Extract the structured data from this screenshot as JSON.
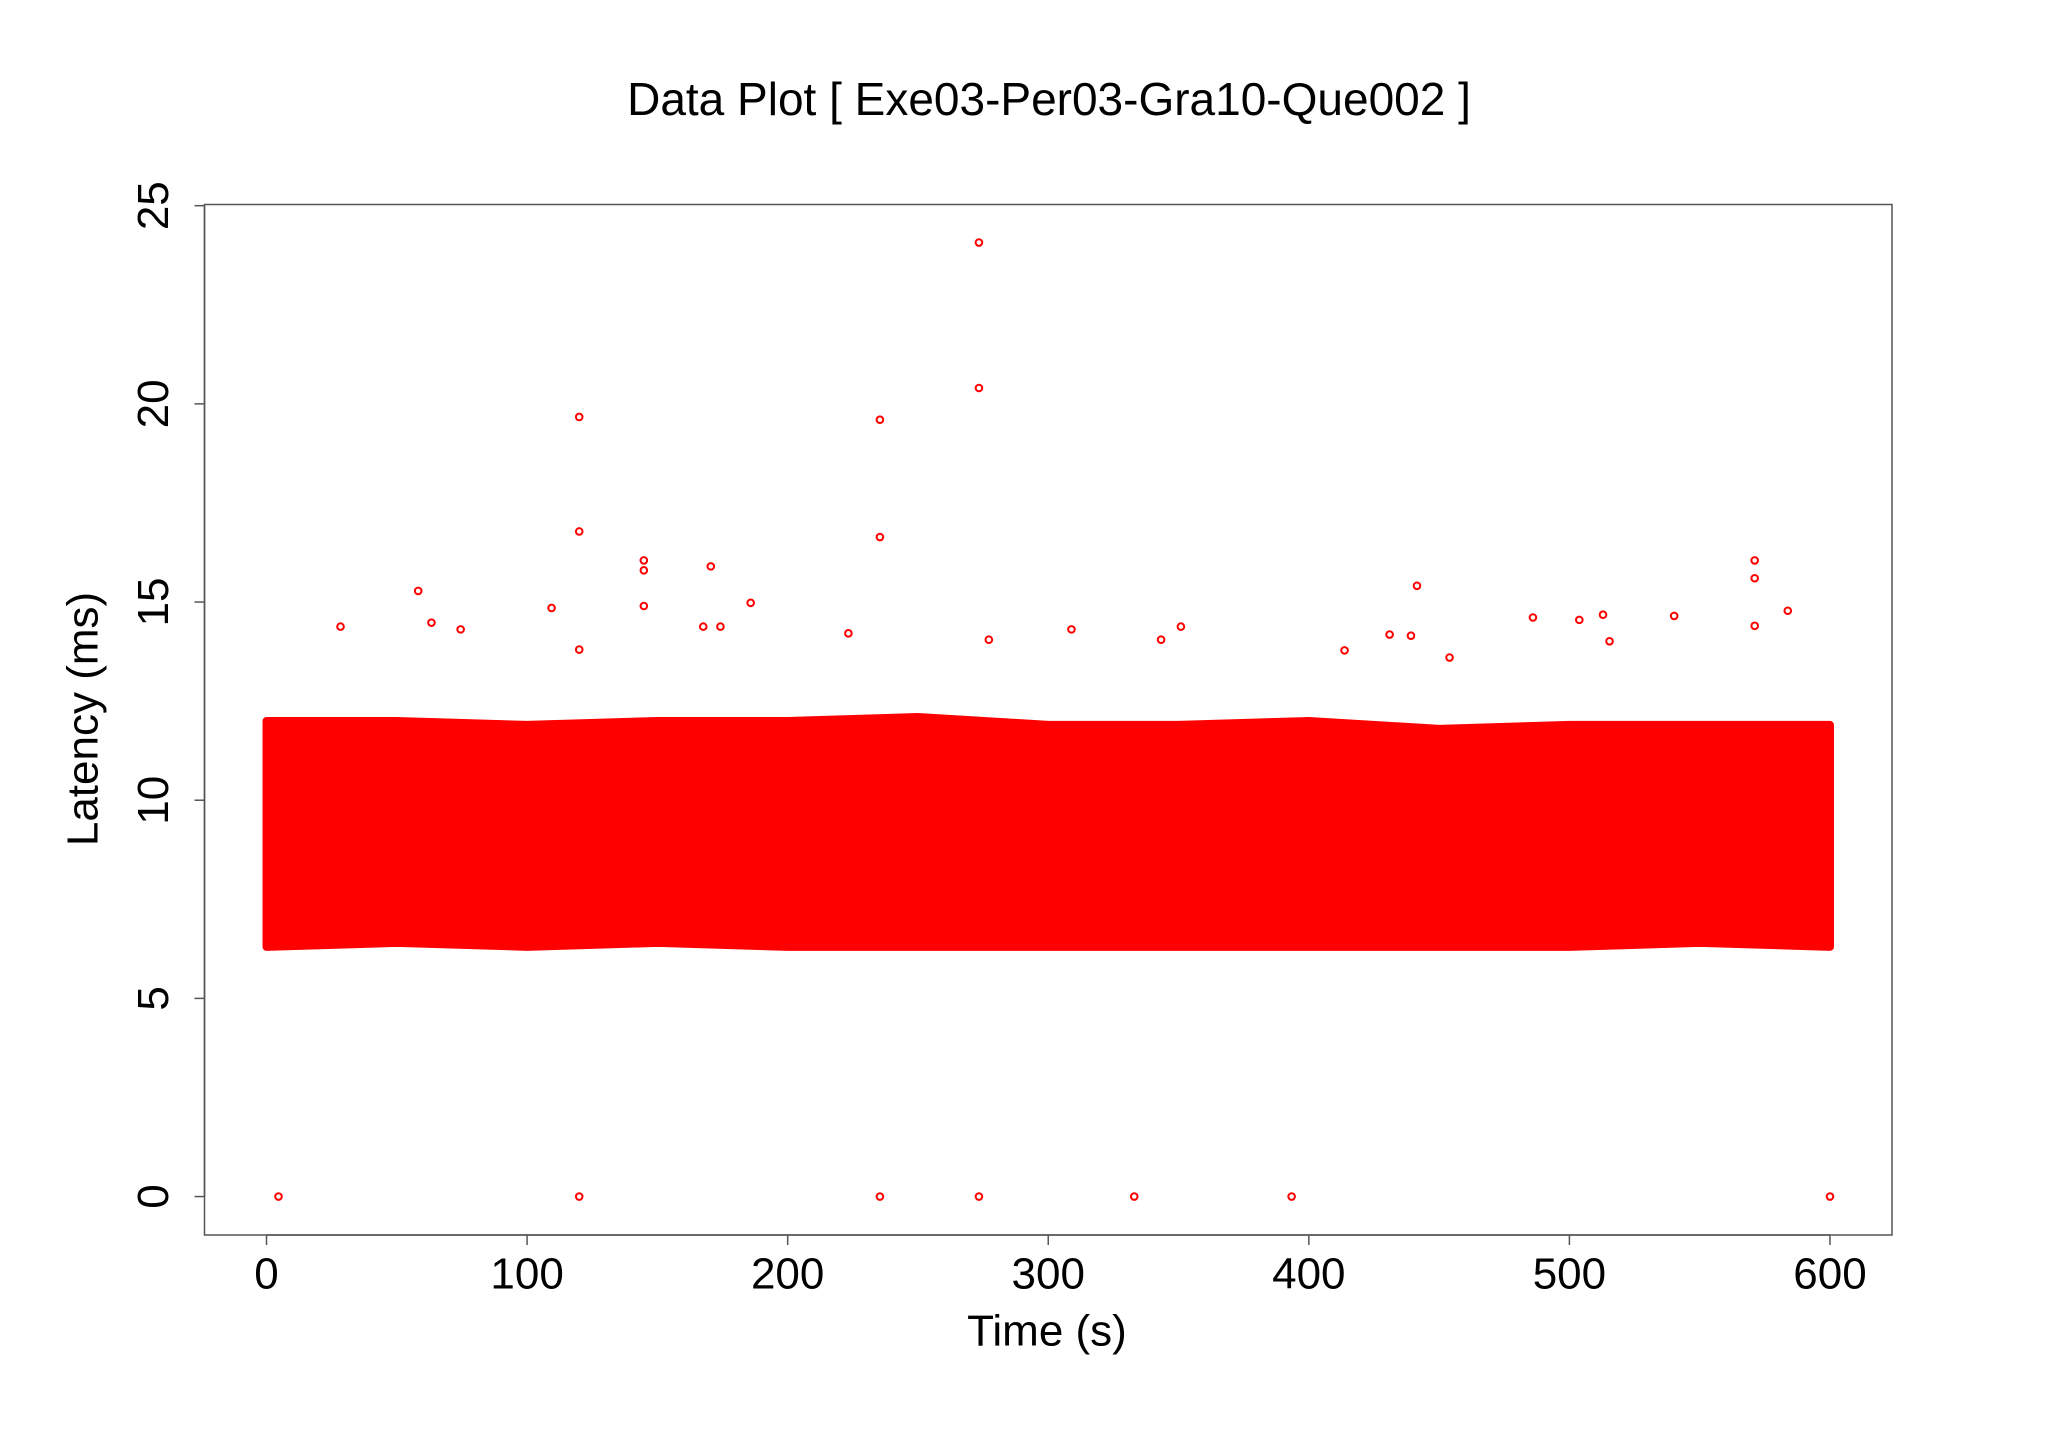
{
  "chart_data": {
    "type": "scatter",
    "title": "Data Plot [ Exe03-Per03-Gra10-Que002 ]",
    "x_label": "Time (s)",
    "y_label": "Latency (ms)",
    "xlim": [
      -23.8,
      623.8
    ],
    "ylim": [
      -0.97,
      25.03
    ],
    "xticks": [
      0,
      100,
      200,
      300,
      400,
      500,
      600
    ],
    "yticks": [
      0,
      5,
      10,
      15,
      20,
      25
    ],
    "band": {
      "color": "#ff0000",
      "x": [
        0,
        50,
        100,
        150,
        200,
        250,
        300,
        350,
        400,
        450,
        500,
        550,
        600
      ],
      "low": [
        6.3,
        6.4,
        6.3,
        6.4,
        6.3,
        6.3,
        6.3,
        6.3,
        6.3,
        6.3,
        6.3,
        6.4,
        6.3
      ],
      "high": [
        12.0,
        12.0,
        11.9,
        12.0,
        12.0,
        12.1,
        11.9,
        11.9,
        12.0,
        11.8,
        11.9,
        11.9,
        11.9
      ]
    },
    "series": [
      {
        "color": "#ff0000",
        "x": [
          4.6,
          120,
          235.4,
          273.4,
          333,
          393.4,
          600,
          273.4,
          273.4,
          120,
          235.4,
          120,
          235.4,
          144.8,
          144.8,
          170.5,
          58.2,
          441.5,
          571.1,
          571.1,
          185.8,
          109.4,
          583.8,
          28.4,
          63.3,
          74.5,
          167.6,
          174.2,
          223.3,
          308.9,
          350.9,
          486,
          512.9,
          540.2,
          503.8,
          431,
          439.2,
          343.3,
          277.2,
          515.4,
          413.7,
          144.8,
          571.1,
          120,
          454
        ],
        "values": [
          0,
          0,
          0,
          0,
          0,
          0,
          0,
          24.07,
          20.4,
          19.67,
          19.6,
          16.78,
          16.64,
          16.05,
          15.8,
          15.9,
          15.28,
          15.41,
          16.05,
          15.6,
          14.98,
          14.85,
          14.78,
          14.38,
          14.48,
          14.31,
          14.38,
          14.38,
          14.21,
          14.31,
          14.38,
          14.61,
          14.68,
          14.65,
          14.55,
          14.18,
          14.15,
          14.05,
          14.05,
          14.01,
          13.78,
          14.9,
          14.4,
          13.8,
          13.6
        ]
      }
    ]
  }
}
